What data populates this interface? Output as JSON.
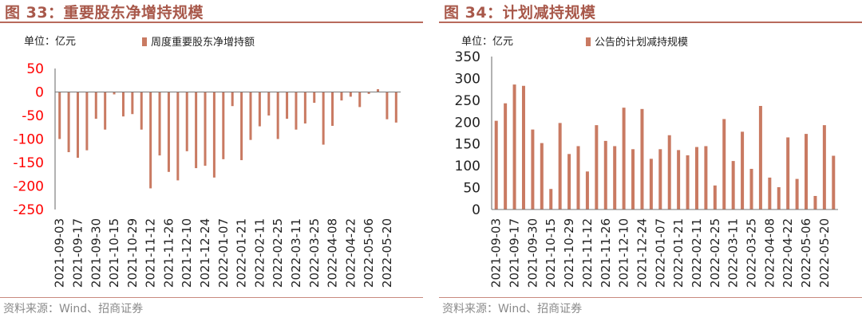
{
  "charts": [
    {
      "title": "图 33：重要股东净增持规模",
      "source": "资料来源：Wind、招商证券",
      "unit_label": "单位：亿元",
      "legend_label": "周度重要股东净增持额",
      "tick_color": "#ff0000",
      "bar_color": "#c97a62"
    },
    {
      "title": "图 34：计划减持规模",
      "source": "资料来源：Wind、招商证券",
      "unit_label": "单位：亿元",
      "legend_label": "公告的计划减持规模",
      "tick_color": "#222222",
      "bar_color": "#c97a62"
    }
  ],
  "chart_data": [
    {
      "type": "bar",
      "title": "图 33：重要股东净增持规模",
      "ylabel": "单位：亿元",
      "ylim": [
        -250,
        50
      ],
      "yticks": [
        50,
        0,
        -50,
        -100,
        -150,
        -200,
        -250
      ],
      "grid": false,
      "legend_position": "top",
      "x_tick_labels": [
        "2021-09-03",
        "2021-09-17",
        "2021-09-30",
        "2021-10-15",
        "2021-10-29",
        "2021-11-12",
        "2021-11-26",
        "2021-12-10",
        "2021-12-24",
        "2022-01-07",
        "2022-01-21",
        "2022-02-11",
        "2022-02-25",
        "2022-03-11",
        "2022-03-25",
        "2022-04-08",
        "2022-04-22",
        "2022-05-06",
        "2022-05-20"
      ],
      "series": [
        {
          "name": "周度重要股东净增持额",
          "values": [
            -100,
            -128,
            -140,
            -124,
            -57,
            -80,
            -5,
            -52,
            -47,
            -80,
            -205,
            -135,
            -170,
            -188,
            -126,
            -162,
            -157,
            -182,
            -143,
            -30,
            -145,
            -102,
            -73,
            -50,
            -100,
            -57,
            -80,
            -67,
            -23,
            -112,
            -72,
            -18,
            -10,
            -32,
            -4,
            6,
            -58,
            -65
          ]
        }
      ]
    },
    {
      "type": "bar",
      "title": "图 34：计划减持规模",
      "ylabel": "单位：亿元",
      "ylim": [
        0,
        350
      ],
      "yticks": [
        350,
        300,
        250,
        200,
        150,
        100,
        50,
        0
      ],
      "grid": false,
      "legend_position": "top",
      "x_tick_labels": [
        "2021-09-03",
        "2021-09-17",
        "2021-09-30",
        "2021-10-15",
        "2021-10-29",
        "2021-11-12",
        "2021-11-26",
        "2021-12-10",
        "2021-12-24",
        "2022-01-07",
        "2022-01-21",
        "2022-02-11",
        "2022-02-25",
        "2022-03-11",
        "2022-03-25",
        "2022-04-08",
        "2022-04-22",
        "2022-05-06",
        "2022-05-20"
      ],
      "series": [
        {
          "name": "公告的计划减持规模",
          "values": [
            203,
            243,
            286,
            283,
            183,
            152,
            47,
            198,
            127,
            145,
            87,
            193,
            157,
            145,
            233,
            138,
            230,
            116,
            138,
            170,
            136,
            124,
            143,
            145,
            55,
            207,
            111,
            178,
            93,
            237,
            73,
            51,
            165,
            70,
            173,
            31,
            193,
            123
          ]
        }
      ]
    }
  ]
}
